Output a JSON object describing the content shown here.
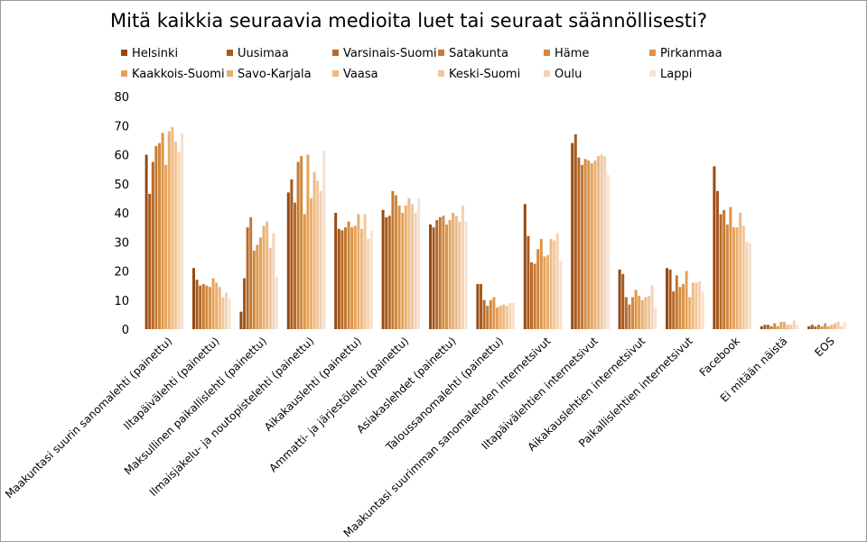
{
  "chart_data": {
    "type": "bar",
    "title": "Mitä kaikkia seuraavia medioita luet tai seuraat säännöllisesti?",
    "xlabel": "",
    "ylabel": "",
    "ylim": [
      0,
      80
    ],
    "yticks": [
      0,
      10,
      20,
      30,
      40,
      50,
      60,
      70,
      80
    ],
    "grid": false,
    "legend_position": "top",
    "categories": [
      "Maakuntasi suurin sanomalehti (painettu)",
      "Iltapäivälehti (painettu)",
      "Maksullinen paikallislehti (painettu)",
      "Ilmaisjakelu- ja noutopistelehti (painettu)",
      "Aikakauslehti (painettu)",
      "Ammatti- ja järjestölehti (painettu)",
      "Asiakaslehdet (painettu)",
      "Taloussanomalehti (painettu)",
      "Maakuntasi suurimman sanomalehden internetsivut",
      "Iltapäivälehtien internetsivut",
      "Aikakauslehtien internetsivut",
      "Paikallislehtien internetsivut",
      "Facebook",
      "Ei mitään näistä",
      "EOS"
    ],
    "series": [
      {
        "name": "Helsinki",
        "color": "#944a14",
        "values": [
          60,
          21,
          6,
          47,
          40,
          41,
          36,
          15.5,
          43,
          64,
          20.5,
          21,
          56,
          1,
          1
        ]
      },
      {
        "name": "Uusimaa",
        "color": "#a85a1e",
        "values": [
          46.5,
          17,
          17.5,
          51.5,
          34.5,
          38.5,
          35,
          15.5,
          32,
          67,
          19,
          20.5,
          47.5,
          1.5,
          1.5
        ]
      },
      {
        "name": "Varsinais-Suomi",
        "color": "#b76a28",
        "values": [
          57.5,
          15,
          35,
          43.5,
          34,
          39,
          37.5,
          10,
          23,
          59,
          11,
          13,
          39.5,
          1.5,
          1
        ]
      },
      {
        "name": "Satakunta",
        "color": "#c47a33",
        "values": [
          63,
          15.5,
          38.5,
          57.5,
          35,
          47.5,
          38.5,
          8,
          22.5,
          56.5,
          8.5,
          18.5,
          41,
          1,
          1.5
        ]
      },
      {
        "name": "Häme",
        "color": "#cf8a40",
        "values": [
          64,
          15,
          27,
          59.5,
          37,
          46,
          39,
          10,
          27.5,
          58.5,
          11,
          14.5,
          36,
          2,
          1
        ]
      },
      {
        "name": "Pirkanmaa",
        "color": "#dc9548",
        "values": [
          67.5,
          14.5,
          29,
          39.5,
          35,
          42.5,
          36,
          11,
          31,
          58,
          13.5,
          15.5,
          42,
          1,
          2
        ]
      },
      {
        "name": "Kaakkois-Suomi",
        "color": "#e6a157",
        "values": [
          56.5,
          17.5,
          31.5,
          60,
          35.5,
          40,
          37.5,
          7.5,
          25,
          57,
          11.5,
          20,
          35,
          2.5,
          1
        ]
      },
      {
        "name": "Savo-Karjala",
        "color": "#eaae6d",
        "values": [
          68,
          16,
          35.5,
          45,
          39.5,
          42.5,
          40,
          8,
          25.5,
          58,
          10,
          11,
          35,
          2.5,
          1.5
        ]
      },
      {
        "name": "Vaasa",
        "color": "#edba84",
        "values": [
          69.5,
          14.5,
          37,
          54,
          34.5,
          45,
          39,
          8.5,
          31,
          59.5,
          11,
          16,
          40,
          1.5,
          2
        ]
      },
      {
        "name": "Keski-Suomi",
        "color": "#f0c69b",
        "values": [
          64.5,
          11,
          28,
          51,
          39.5,
          43,
          37,
          8,
          30.5,
          60,
          11.5,
          16,
          35.5,
          1.5,
          2.5
        ]
      },
      {
        "name": "Oulu",
        "color": "#f3d3b6",
        "values": [
          61,
          12.5,
          33,
          47.5,
          31,
          40,
          42.5,
          9,
          33,
          59.5,
          15,
          16.5,
          30,
          3,
          1
        ]
      },
      {
        "name": "Lappi",
        "color": "#f7e1d0",
        "values": [
          67.5,
          10.5,
          18,
          61.5,
          34,
          45,
          37,
          9,
          23.5,
          53,
          7.5,
          13,
          29.5,
          1.5,
          2.5
        ]
      }
    ]
  }
}
